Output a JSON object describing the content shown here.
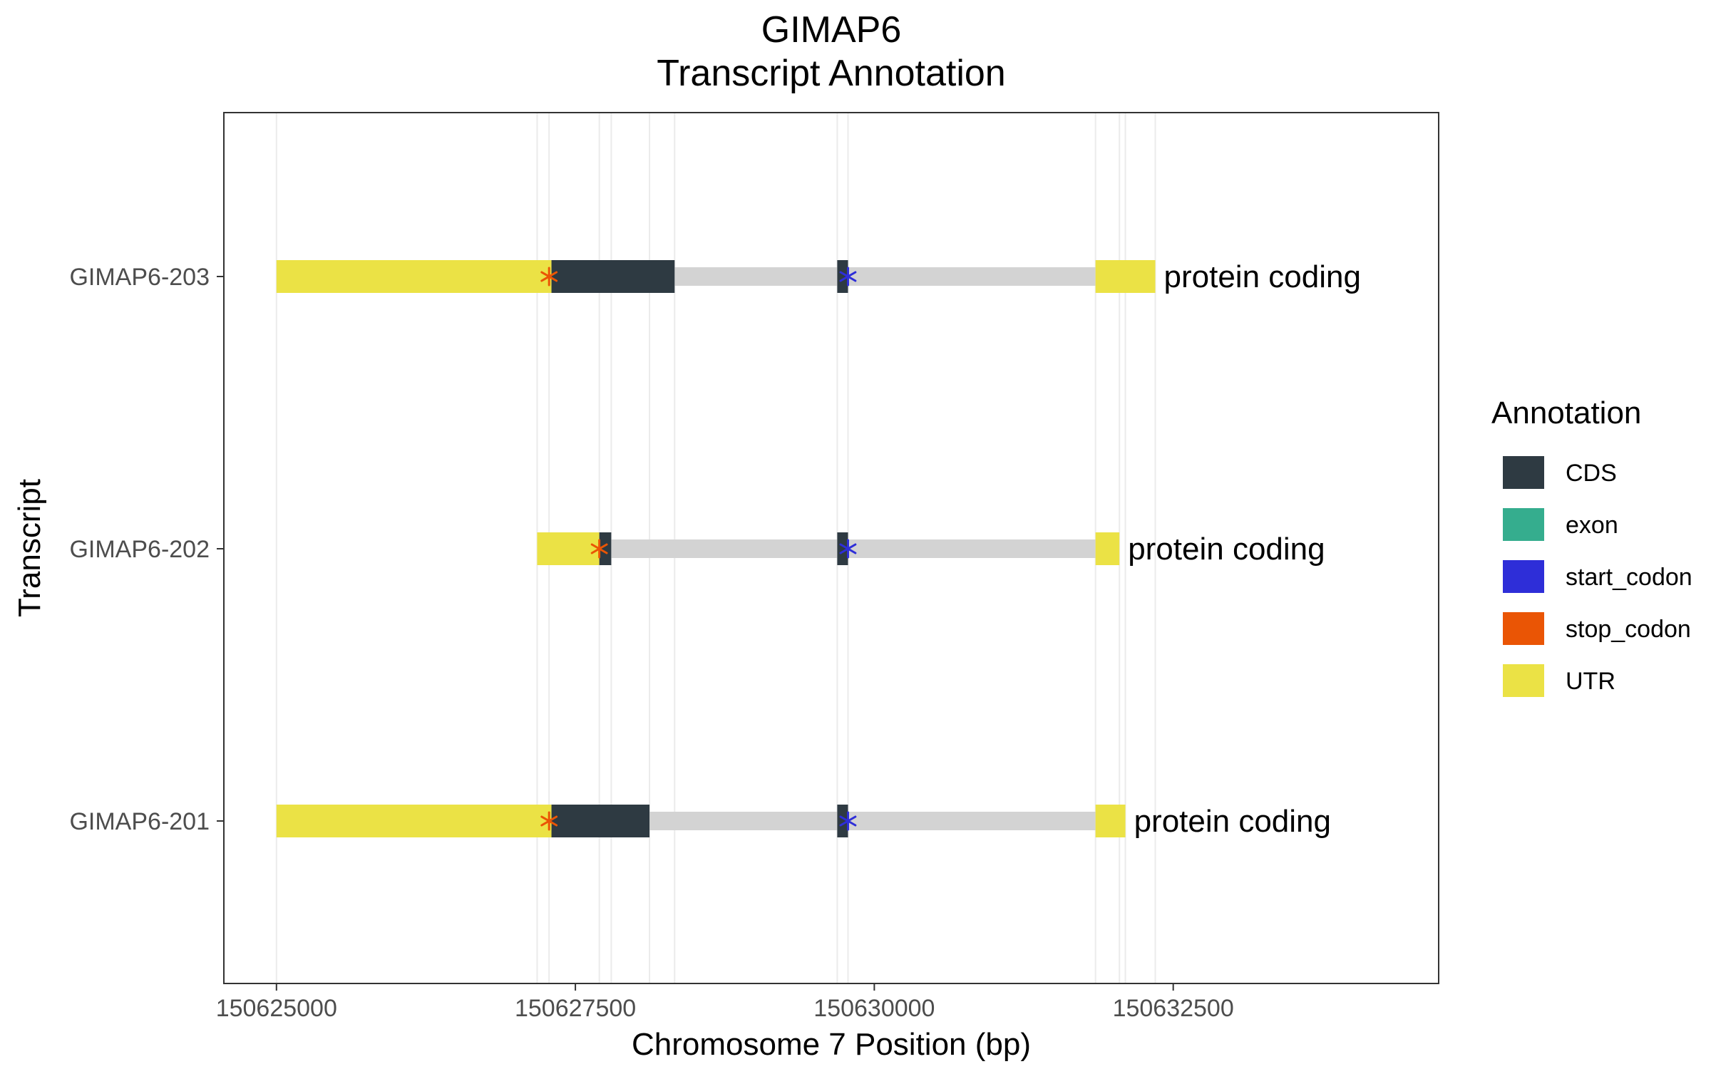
{
  "chart_data": {
    "type": "gene-track",
    "title_lines": [
      "GIMAP6",
      "Transcript Annotation"
    ],
    "xlabel": "Chromosome 7 Position (bp)",
    "ylabel": "Transcript",
    "xlim": [
      150624560,
      150634720
    ],
    "xticks": [
      150625000,
      150627500,
      150630000,
      150632500
    ],
    "xtick_labels": [
      "150625000",
      "150627500",
      "150630000",
      "150632500"
    ],
    "x_gridlines": [
      150625000,
      150627180,
      150627280,
      150627700,
      150627800,
      150628120,
      150628330,
      150629690,
      150629780,
      150631850,
      150632050,
      150632100,
      150632350
    ],
    "legend": {
      "title": "Annotation",
      "position": "right",
      "entries": [
        {
          "label": "CDS",
          "color": "#2e3a42"
        },
        {
          "label": "exon",
          "color": "#35ad8e"
        },
        {
          "label": "start_codon",
          "color": "#2e2ed8"
        },
        {
          "label": "stop_codon",
          "color": "#ea5505"
        },
        {
          "label": "UTR",
          "color": "#ebe245"
        }
      ]
    },
    "intron_color": "#d3d3d3",
    "transcripts": [
      {
        "name": "GIMAP6-203",
        "biotype": "protein coding",
        "introns": [
          [
            150628330,
            150629690
          ],
          [
            150629780,
            150631850
          ]
        ],
        "features": [
          {
            "type": "UTR",
            "start": 150625000,
            "end": 150627300
          },
          {
            "type": "CDS",
            "start": 150627300,
            "end": 150628330
          },
          {
            "type": "CDS",
            "start": 150629690,
            "end": 150629780
          },
          {
            "type": "UTR",
            "start": 150631850,
            "end": 150632350
          }
        ],
        "stop_codon": 150627280,
        "start_codon": 150629780
      },
      {
        "name": "GIMAP6-202",
        "biotype": "protein coding",
        "introns": [
          [
            150627800,
            150629690
          ],
          [
            150629780,
            150631850
          ]
        ],
        "features": [
          {
            "type": "UTR",
            "start": 150627180,
            "end": 150627700
          },
          {
            "type": "CDS",
            "start": 150627700,
            "end": 150627800
          },
          {
            "type": "CDS",
            "start": 150629690,
            "end": 150629780
          },
          {
            "type": "UTR",
            "start": 150631850,
            "end": 150632050
          }
        ],
        "stop_codon": 150627700,
        "start_codon": 150629780
      },
      {
        "name": "GIMAP6-201",
        "biotype": "protein coding",
        "introns": [
          [
            150628120,
            150629690
          ],
          [
            150629780,
            150631850
          ]
        ],
        "features": [
          {
            "type": "UTR",
            "start": 150625000,
            "end": 150627300
          },
          {
            "type": "CDS",
            "start": 150627300,
            "end": 150628120
          },
          {
            "type": "CDS",
            "start": 150629690,
            "end": 150629780
          },
          {
            "type": "UTR",
            "start": 150631850,
            "end": 150632100
          }
        ],
        "stop_codon": 150627280,
        "start_codon": 150629780
      }
    ]
  }
}
